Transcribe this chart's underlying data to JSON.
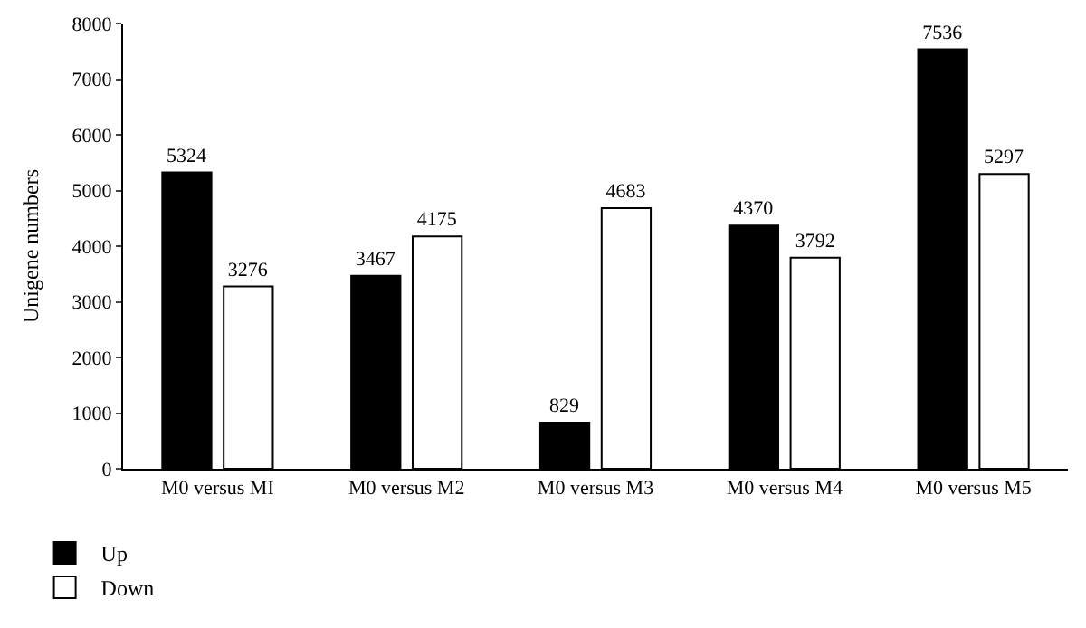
{
  "chart_data": {
    "type": "bar",
    "ylabel": "Unigene numbers",
    "categories": [
      "M0 versus MI",
      "M0 versus M2",
      "M0 versus M3",
      "M0 versus M4",
      "M0 versus M5"
    ],
    "series": [
      {
        "name": "Up",
        "color": "#000000",
        "values": [
          5324,
          3467,
          829,
          4370,
          7536
        ]
      },
      {
        "name": "Down",
        "color": "#ffffff",
        "values": [
          3276,
          4175,
          4683,
          3792,
          5297
        ]
      }
    ],
    "ylim": [
      0,
      8000
    ],
    "yticks": [
      0,
      1000,
      2000,
      3000,
      4000,
      5000,
      6000,
      7000,
      8000
    ],
    "data_labels": true,
    "legend": "bottom left"
  }
}
